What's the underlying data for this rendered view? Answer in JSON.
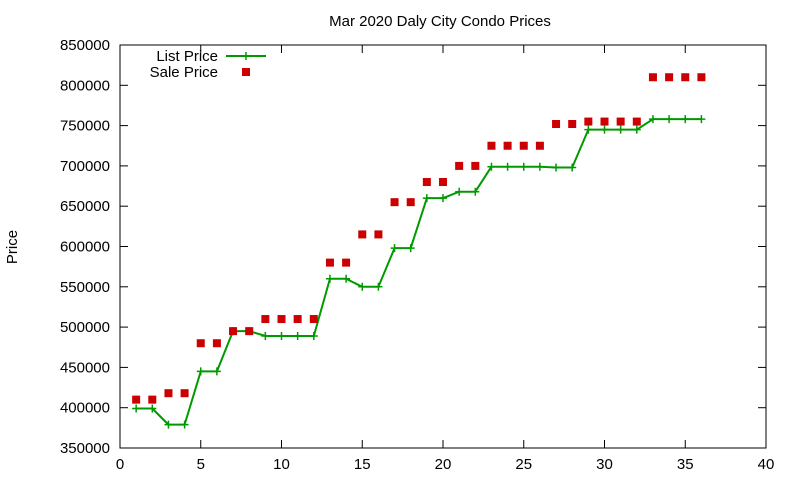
{
  "chart_data": {
    "type": "line",
    "title": "Mar 2020 Daly City Condo Prices",
    "xlabel": "",
    "ylabel": "Price",
    "xlim": [
      0,
      40
    ],
    "ylim": [
      350000,
      850000
    ],
    "xticks": [
      0,
      5,
      10,
      15,
      20,
      25,
      30,
      35,
      40
    ],
    "yticks": [
      350000,
      400000,
      450000,
      500000,
      550000,
      600000,
      650000,
      700000,
      750000,
      800000,
      850000
    ],
    "grid": false,
    "legend_position": "top-left",
    "series": [
      {
        "name": "List Price",
        "style": "line-with-plus-markers",
        "color": "#009900",
        "x": [
          1,
          2,
          3,
          4,
          5,
          6,
          7,
          8,
          9,
          10,
          11,
          12,
          13,
          14,
          15,
          16,
          17,
          18,
          19,
          20,
          21,
          22,
          23,
          24,
          25,
          26,
          27,
          28,
          29,
          30,
          31,
          32,
          33,
          34,
          35,
          36
        ],
        "y": [
          399000,
          399000,
          379000,
          379000,
          445000,
          445000,
          495000,
          495000,
          489000,
          489000,
          489000,
          489000,
          560000,
          560000,
          550000,
          550000,
          598000,
          598000,
          660000,
          660000,
          668000,
          668000,
          699000,
          699000,
          699000,
          699000,
          698000,
          698000,
          745000,
          745000,
          745000,
          745000,
          758000,
          758000,
          758000,
          758000
        ]
      },
      {
        "name": "Sale Price",
        "style": "square-markers",
        "color": "#cc0000",
        "x": [
          1,
          2,
          3,
          4,
          5,
          6,
          7,
          8,
          9,
          10,
          11,
          12,
          13,
          14,
          15,
          16,
          17,
          18,
          19,
          20,
          21,
          22,
          23,
          24,
          25,
          26,
          27,
          28,
          29,
          30,
          31,
          32,
          33,
          34,
          35,
          36
        ],
        "y": [
          410000,
          410000,
          418000,
          418000,
          480000,
          480000,
          495000,
          495000,
          510000,
          510000,
          510000,
          510000,
          580000,
          580000,
          615000,
          615000,
          655000,
          655000,
          680000,
          680000,
          700000,
          700000,
          725000,
          725000,
          725000,
          725000,
          752000,
          752000,
          755000,
          755000,
          755000,
          755000,
          810000,
          810000,
          810000,
          810000
        ]
      }
    ]
  }
}
